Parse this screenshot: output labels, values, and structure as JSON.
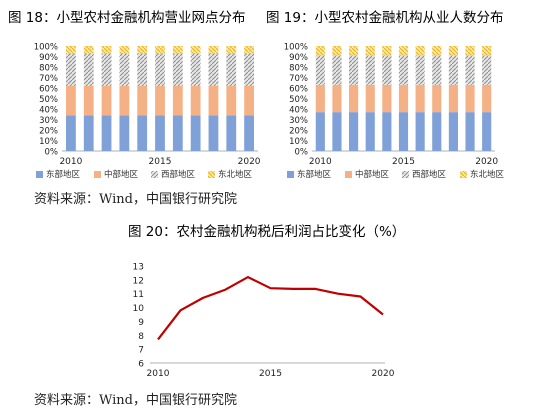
{
  "titles": {
    "fig18": "图 18：小型农村金融机构营业网点分布",
    "fig19": "图 19：小型农村金融机构从业人数分布",
    "fig20": "图 20：农村金融机构税后利润占比变化（%）"
  },
  "sources": {
    "top": "资料来源：Wind，中国银行研究院",
    "bottom": "资料来源：Wind，中国银行研究院"
  },
  "colors": {
    "east": "#7fa1d8",
    "central": "#f5b186",
    "west": "#c6c6c6",
    "northeast": "#f5d16a",
    "line": "#c00000"
  },
  "chart_data": [
    {
      "type": "bar",
      "stacked": true,
      "normalized": true,
      "title": "图 18：小型农村金融机构营业网点分布",
      "categories": [
        "2010",
        "2011",
        "2012",
        "2013",
        "2014",
        "2015",
        "2016",
        "2017",
        "2018",
        "2019",
        "2020"
      ],
      "x_tick_labels": [
        "2010",
        "2015",
        "2020"
      ],
      "y_tick_labels": [
        "0%",
        "10%",
        "20%",
        "30%",
        "40%",
        "50%",
        "60%",
        "70%",
        "80%",
        "90%",
        "100%"
      ],
      "ylim": [
        0,
        100
      ],
      "legend_position": "bottom",
      "series": [
        {
          "name": "东部地区",
          "values": [
            34,
            34,
            34,
            34,
            34,
            34,
            34,
            34,
            34,
            34,
            34
          ]
        },
        {
          "name": "中部地区",
          "values": [
            28,
            28,
            28,
            28,
            28,
            28,
            28,
            28,
            28,
            28,
            28
          ]
        },
        {
          "name": "西部地区",
          "values": [
            31,
            31,
            31,
            31,
            31,
            31,
            31,
            31,
            31,
            31,
            31
          ]
        },
        {
          "name": "东北地区",
          "values": [
            7,
            7,
            7,
            7,
            7,
            7,
            7,
            7,
            7,
            7,
            7
          ]
        }
      ]
    },
    {
      "type": "bar",
      "stacked": true,
      "normalized": true,
      "title": "图 19：小型农村金融机构从业人数分布",
      "categories": [
        "2010",
        "2011",
        "2012",
        "2013",
        "2014",
        "2015",
        "2016",
        "2017",
        "2018",
        "2019",
        "2020"
      ],
      "x_tick_labels": [
        "2010",
        "2015",
        "2020"
      ],
      "y_tick_labels": [
        "0%",
        "10%",
        "20%",
        "30%",
        "40%",
        "50%",
        "60%",
        "70%",
        "80%",
        "90%",
        "100%"
      ],
      "ylim": [
        0,
        100
      ],
      "legend_position": "bottom",
      "series": [
        {
          "name": "东部地区",
          "values": [
            37,
            37,
            37,
            37,
            37,
            37,
            37,
            37,
            37,
            37,
            37
          ]
        },
        {
          "name": "中部地区",
          "values": [
            26,
            26,
            26,
            26,
            26,
            26,
            26,
            26,
            26,
            26,
            26
          ]
        },
        {
          "name": "西部地区",
          "values": [
            28,
            28,
            28,
            28,
            28,
            28,
            28,
            28,
            28,
            28,
            28
          ]
        },
        {
          "name": "东北地区",
          "values": [
            9,
            9,
            9,
            9,
            9,
            9,
            9,
            9,
            9,
            9,
            9
          ]
        }
      ]
    },
    {
      "type": "line",
      "title": "图 20：农村金融机构税后利润占比变化（%）",
      "x": [
        2010,
        2011,
        2012,
        2013,
        2014,
        2015,
        2016,
        2017,
        2018,
        2019,
        2020
      ],
      "x_tick_labels": [
        "2010",
        "2015",
        "2020"
      ],
      "y_tick_labels": [
        "6",
        "7",
        "8",
        "9",
        "10",
        "11",
        "12",
        "13"
      ],
      "ylim": [
        6,
        13
      ],
      "series": [
        {
          "values": [
            7.7,
            9.8,
            10.7,
            11.3,
            12.2,
            11.4,
            11.35,
            11.35,
            11.0,
            10.8,
            9.5
          ]
        }
      ]
    }
  ]
}
